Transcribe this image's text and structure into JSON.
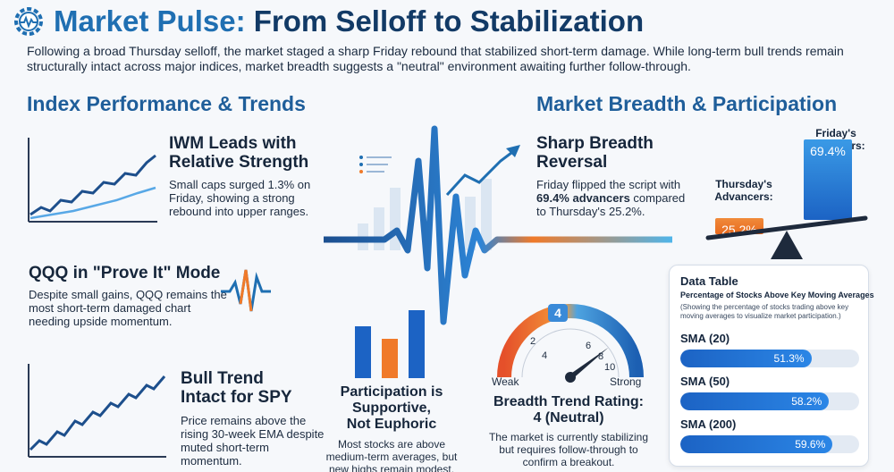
{
  "header": {
    "title_main": "Market Pulse:",
    "title_rest": "From Selloff to Stabilization",
    "intro": "Following a broad Thursday selloff, the market staged a sharp Friday rebound that stabilized short-term damage. While long-term bull trends remain structurally intact across major indices, market breadth suggests a \"neutral\" environment awaiting further follow-through."
  },
  "left_section": {
    "heading": "Index Performance & Trends",
    "cards": [
      {
        "title_line1": "IWM Leads with",
        "title_line2": "Relative Strength",
        "text": "Small caps surged 1.3% on Friday, showing a strong rebound into upper ranges."
      },
      {
        "title_line1": "QQQ in \"Prove It\" Mode",
        "title_line2": "",
        "text": "Despite small gains, QQQ remains the most short-term damaged chart needing upside momentum."
      },
      {
        "title_line1": "Bull Trend",
        "title_line2": "Intact for SPY",
        "text": "Price remains above the rising 30-week EMA despite muted short-term momentum."
      }
    ]
  },
  "center": {
    "participation_title_1": "Participation is",
    "participation_title_2": "Supportive,",
    "participation_title_3": "Not Euphoric",
    "participation_text": "Most stocks are above medium-term averages, but new highs remain modest.",
    "gauge": {
      "value": 4,
      "value_label": "4",
      "ticks": [
        "2",
        "4",
        "6",
        "8",
        "10"
      ],
      "low_label": "Weak",
      "high_label": "Strong",
      "title_1": "Breadth Trend Rating:",
      "title_2": "4 (Neutral)",
      "text": "The market is currently stabilizing but requires follow-through to confirm a breakout."
    }
  },
  "right_section": {
    "heading": "Market Breadth & Participation",
    "card_title_1": "Sharp Breadth",
    "card_title_2": "Reversal",
    "card_text_a": "Friday flipped the script with",
    "card_text_bold": "69.4% advancers",
    "card_text_b": "compared to Thursday's 25.2%.",
    "thursday_label_1": "Thursday's",
    "thursday_label_2": "Advancers:",
    "thursday_value": "25.2%",
    "thursday_pct": 25.2,
    "friday_label_1": "Friday's",
    "friday_label_2": "Advancers:",
    "friday_value": "69.4%",
    "friday_pct": 69.4
  },
  "data_table": {
    "title": "Data Table",
    "subtitle": "Percentage of Stocks Above Key Moving Averages",
    "note": "(Showing the percentage of stocks trading above key moving averages to visualize market participation.)",
    "rows": [
      {
        "label": "SMA (20)",
        "value_text": "51.3%",
        "value": 51.3
      },
      {
        "label": "SMA (50)",
        "value_text": "58.2%",
        "value": 58.2
      },
      {
        "label": "SMA (200)",
        "value_text": "59.6%",
        "value": 59.6
      }
    ]
  },
  "colors": {
    "blue": "#1f6fb2",
    "orange": "#f07a2a",
    "bar_blue": "#1c63c4"
  }
}
